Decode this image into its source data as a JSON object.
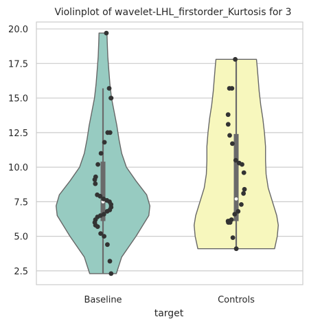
{
  "chart_data": {
    "type": "violin",
    "title": "Violinplot of wavelet-LHL_firstorder_Kurtosis for 3",
    "xlabel": "target",
    "ylabel": "",
    "categories": [
      "Baseline",
      "Controls"
    ],
    "ylim": [
      1.5,
      20.5
    ],
    "yticks": [
      2.5,
      5.0,
      7.5,
      10.0,
      12.5,
      15.0,
      17.5,
      20.0
    ],
    "ytick_labels": [
      "2.5",
      "5.0",
      "7.5",
      "10.0",
      "12.5",
      "15.0",
      "17.5",
      "20.0"
    ],
    "grid": "horizontal",
    "colors": {
      "Baseline": "#97cbc1",
      "Controls": "#f7f7bd",
      "outline": "#666666",
      "points": "#333333",
      "grid": "#cccccc",
      "box": "#6a6a6a"
    },
    "series": [
      {
        "category": "Baseline",
        "min": 2.3,
        "q1": 6.1,
        "median": 7.5,
        "q3": 10.4,
        "max": 19.7,
        "whisker_high": 15.7,
        "violin_profile": [
          [
            2.3,
            0.25
          ],
          [
            3.5,
            0.35
          ],
          [
            5.0,
            0.62
          ],
          [
            6.5,
            0.86
          ],
          [
            7.2,
            0.88
          ],
          [
            8.0,
            0.82
          ],
          [
            9.0,
            0.62
          ],
          [
            10.0,
            0.44
          ],
          [
            11.0,
            0.35
          ],
          [
            12.0,
            0.3
          ],
          [
            13.0,
            0.26
          ],
          [
            14.0,
            0.21
          ],
          [
            15.0,
            0.16
          ],
          [
            16.0,
            0.13
          ],
          [
            17.0,
            0.11
          ],
          [
            18.0,
            0.09
          ],
          [
            19.0,
            0.08
          ],
          [
            19.7,
            0.075
          ]
        ],
        "points": [
          19.7,
          15.7,
          15.0,
          15.0,
          12.5,
          12.5,
          11.8,
          11.0,
          10.2,
          9.3,
          9.1,
          8.8,
          8.0,
          7.9,
          7.7,
          7.6,
          7.5,
          7.3,
          7.1,
          6.9,
          6.8,
          6.6,
          6.5,
          6.4,
          6.2,
          6.0,
          5.8,
          5.7,
          5.2,
          5.0,
          4.4,
          3.2,
          2.3
        ]
      },
      {
        "category": "Controls",
        "min": 4.1,
        "q1": 6.1,
        "median": 7.7,
        "q3": 12.4,
        "max": 17.8,
        "violin_profile": [
          [
            4.1,
            0.72
          ],
          [
            5.0,
            0.77
          ],
          [
            5.8,
            0.79
          ],
          [
            6.5,
            0.76
          ],
          [
            7.5,
            0.68
          ],
          [
            8.5,
            0.6
          ],
          [
            9.5,
            0.56
          ],
          [
            10.5,
            0.55
          ],
          [
            11.5,
            0.55
          ],
          [
            12.5,
            0.53
          ],
          [
            13.5,
            0.5
          ],
          [
            14.5,
            0.46
          ],
          [
            15.5,
            0.43
          ],
          [
            16.5,
            0.41
          ],
          [
            17.4,
            0.39
          ],
          [
            17.8,
            0.38
          ]
        ],
        "points": [
          17.8,
          15.7,
          15.7,
          13.8,
          13.1,
          12.3,
          11.7,
          10.5,
          10.3,
          10.2,
          9.6,
          8.4,
          8.1,
          7.3,
          6.8,
          6.6,
          6.2,
          6.1,
          6.1,
          6.0,
          6.0,
          4.9,
          4.1
        ]
      }
    ]
  }
}
